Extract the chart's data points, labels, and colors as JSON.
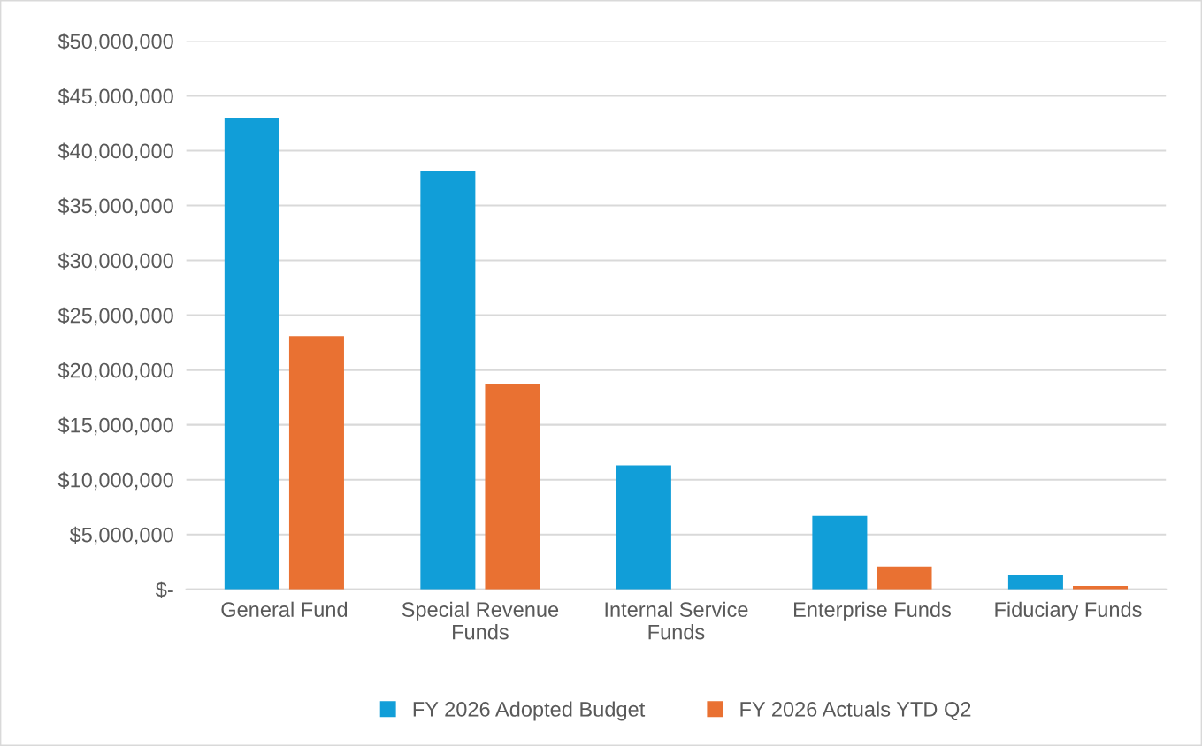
{
  "chart_data": {
    "type": "bar",
    "categories": [
      "General Fund",
      "Special Revenue\nFunds",
      "Internal Service\nFunds",
      "Enterprise Funds",
      "Fiduciary Funds"
    ],
    "series": [
      {
        "name": "FY 2026 Adopted Budget",
        "color": "#119ed8",
        "values": [
          43000000,
          38100000,
          11300000,
          6700000,
          1300000
        ]
      },
      {
        "name": "FY 2026 Actuals YTD Q2",
        "color": "#e97132",
        "values": [
          23100000,
          18700000,
          0,
          2100000,
          300000
        ]
      }
    ],
    "ylim": [
      0,
      50000000
    ],
    "yticks": [
      {
        "value": 0,
        "label": "$-"
      },
      {
        "value": 5000000,
        "label": "$5,000,000"
      },
      {
        "value": 10000000,
        "label": "$10,000,000"
      },
      {
        "value": 15000000,
        "label": "$15,000,000"
      },
      {
        "value": 20000000,
        "label": "$20,000,000"
      },
      {
        "value": 25000000,
        "label": "$25,000,000"
      },
      {
        "value": 30000000,
        "label": "$30,000,000"
      },
      {
        "value": 35000000,
        "label": "$35,000,000"
      },
      {
        "value": 40000000,
        "label": "$40,000,000"
      },
      {
        "value": 45000000,
        "label": "$45,000,000"
      },
      {
        "value": 50000000,
        "label": "$50,000,000"
      }
    ],
    "grid": "y",
    "legend": "bottom"
  }
}
